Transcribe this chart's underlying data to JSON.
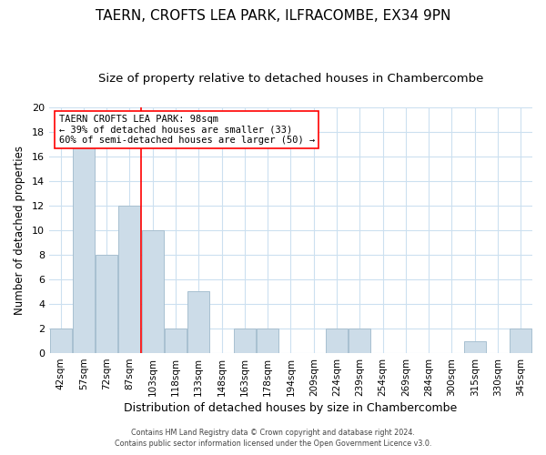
{
  "title": "TAERN, CROFTS LEA PARK, ILFRACOMBE, EX34 9PN",
  "subtitle": "Size of property relative to detached houses in Chambercombe",
  "xlabel": "Distribution of detached houses by size in Chambercombe",
  "ylabel": "Number of detached properties",
  "categories": [
    "42sqm",
    "57sqm",
    "72sqm",
    "87sqm",
    "103sqm",
    "118sqm",
    "133sqm",
    "148sqm",
    "163sqm",
    "178sqm",
    "194sqm",
    "209sqm",
    "224sqm",
    "239sqm",
    "254sqm",
    "269sqm",
    "284sqm",
    "300sqm",
    "315sqm",
    "330sqm",
    "345sqm"
  ],
  "values": [
    2,
    17,
    8,
    12,
    10,
    2,
    5,
    0,
    2,
    2,
    0,
    0,
    2,
    2,
    0,
    0,
    0,
    0,
    1,
    0,
    2
  ],
  "bar_color": "#ccdce8",
  "bar_edge_color": "#a8c0d0",
  "red_line_index": 4,
  "annotation_title": "TAERN CROFTS LEA PARK: 98sqm",
  "annotation_line2": "← 39% of detached houses are smaller (33)",
  "annotation_line3": "60% of semi-detached houses are larger (50) →",
  "ylim": [
    0,
    20
  ],
  "title_fontsize": 11,
  "subtitle_fontsize": 9.5,
  "footer_line1": "Contains HM Land Registry data © Crown copyright and database right 2024.",
  "footer_line2": "Contains public sector information licensed under the Open Government Licence v3.0."
}
